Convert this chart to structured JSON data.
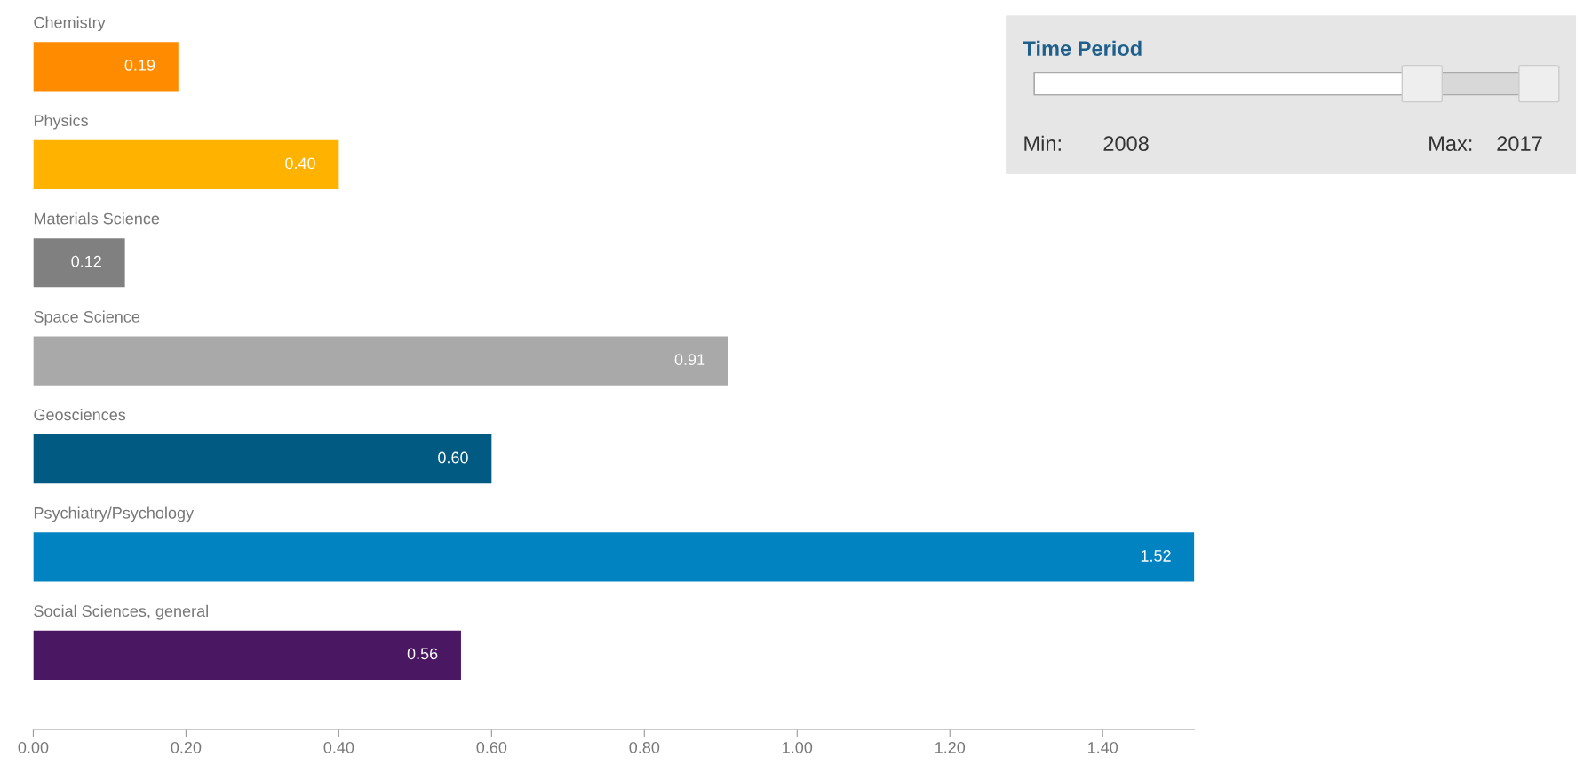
{
  "chart_data": {
    "type": "bar",
    "orientation": "horizontal",
    "categories": [
      "Chemistry",
      "Physics",
      "Materials Science",
      "Space Science",
      "Geosciences",
      "Psychiatry/Psychology",
      "Social Sciences, general"
    ],
    "values": [
      0.19,
      0.4,
      0.12,
      0.91,
      0.6,
      1.52,
      0.56
    ],
    "value_labels": [
      "0.19",
      "0.40",
      "0.12",
      "0.91",
      "0.60",
      "1.52",
      "0.56"
    ],
    "colors": [
      "#ff8c00",
      "#ffb300",
      "#808080",
      "#a9a9a9",
      "#005a82",
      "#0083c0",
      "#4a1763"
    ],
    "xlim": [
      0,
      1.52
    ],
    "xticks": [
      {
        "value": 0,
        "label": "0.00"
      },
      {
        "value": 0.2,
        "label": "0.20"
      },
      {
        "value": 0.4,
        "label": "0.40"
      },
      {
        "value": 0.6,
        "label": "0.60"
      },
      {
        "value": 0.8,
        "label": "0.80"
      },
      {
        "value": 1.0,
        "label": "1.00"
      },
      {
        "value": 1.2,
        "label": "1.20"
      },
      {
        "value": 1.4,
        "label": "1.40"
      }
    ],
    "tick_labels": "x",
    "grid": false,
    "legend": false,
    "annotations": [
      "Time Period",
      "Min:",
      "2008",
      "Max:",
      "2017"
    ]
  }
}
